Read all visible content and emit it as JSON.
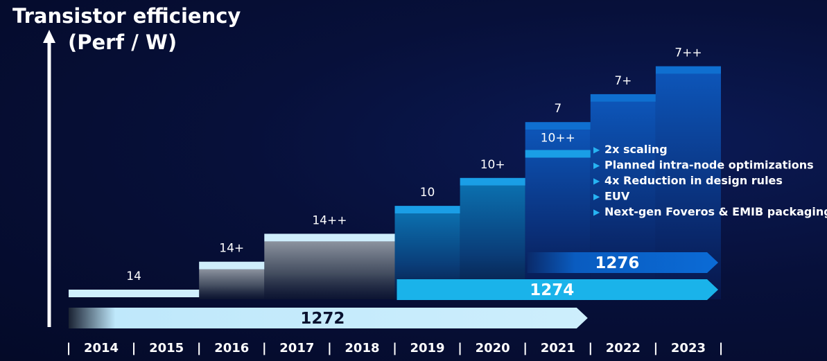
{
  "chart_data": {
    "type": "bar",
    "title_lines": [
      "Transistor efficiency",
      "(Perf / W)"
    ],
    "x_years": [
      "2014",
      "2015",
      "2016",
      "2017",
      "2018",
      "2019",
      "2020",
      "2021",
      "2022",
      "2023"
    ],
    "separator": "|",
    "nodes": [
      {
        "label": "14",
        "start_year": "2014",
        "end_year": "2015",
        "level": 1
      },
      {
        "label": "14+",
        "start_year": "2016",
        "end_year": "2016",
        "level": 2
      },
      {
        "label": "14++",
        "start_year": "2017",
        "end_year": "2018",
        "level": 3
      },
      {
        "label": "10",
        "start_year": "2019",
        "end_year": "2019",
        "level": 4
      },
      {
        "label": "10+",
        "start_year": "2020",
        "end_year": "2020",
        "level": 5
      },
      {
        "label": "10++",
        "start_year": "2021",
        "end_year": "2021",
        "level": 6
      },
      {
        "label": "7",
        "start_year": "2021",
        "end_year": "2021",
        "level": 7
      },
      {
        "label": "7+",
        "start_year": "2022",
        "end_year": "2022",
        "level": 8
      },
      {
        "label": "7++",
        "start_year": "2023",
        "end_year": "2023",
        "level": 9
      }
    ],
    "process_bars": [
      {
        "label": "1272",
        "start_year": "2014",
        "end_year": "2021",
        "color": "#bfe8fb"
      },
      {
        "label": "1274",
        "start_year": "2019",
        "end_year": "2023",
        "color": "#1ab3ea"
      },
      {
        "label": "1276",
        "start_year": "2021",
        "end_year": "2023",
        "color": "#0a63c4"
      }
    ],
    "annotations": [
      "2x scaling",
      "Planned intra-node optimizations",
      "4x Reduction in design rules",
      "EUV",
      "Next-gen Foveros & EMIB packaging"
    ],
    "bullet_glyph": "▶",
    "colors": {
      "light_bar": "#cfeefc",
      "blue_cap": "#1a9ee6",
      "dark_blue_cap": "#0f6fd0",
      "text": "#ffffff",
      "bullet": "#27b3f2"
    }
  }
}
